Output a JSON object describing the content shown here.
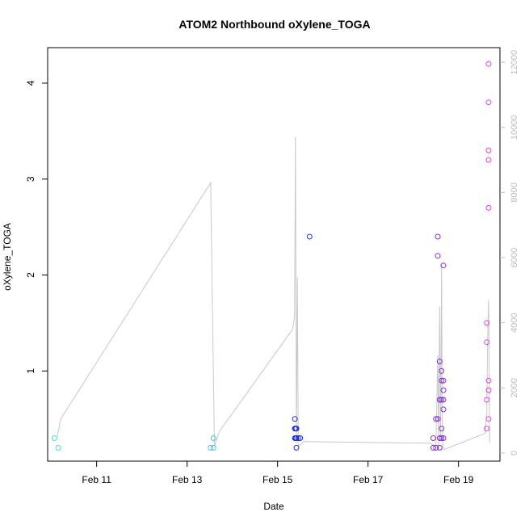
{
  "chart_data": {
    "type": "scatter",
    "title": "ATOM2 Northbound oXylene_TOGA",
    "xlabel": "Date",
    "ylabel": "oXylene_TOGA",
    "xlim": [
      "2017-02-09 22:00",
      "2017-02-19 22:00"
    ],
    "ylim": [
      0.06,
      4.37
    ],
    "x_ticks": [
      {
        "date": "2017-02-11",
        "label": "Feb 11"
      },
      {
        "date": "2017-02-13",
        "label": "Feb 13"
      },
      {
        "date": "2017-02-15",
        "label": "Feb 15"
      },
      {
        "date": "2017-02-17",
        "label": "Feb 17"
      },
      {
        "date": "2017-02-19",
        "label": "Feb 19"
      }
    ],
    "y_ticks": [
      1,
      2,
      3,
      4
    ],
    "secondary_axis": {
      "position": "right",
      "ylim": [
        -250,
        12450
      ],
      "ticks": [
        0,
        2000,
        4000,
        6000,
        8000,
        10000,
        12000
      ],
      "color": "#bdbdbd"
    },
    "series": [
      {
        "type": "points",
        "color_scale": "cyan-blue-magenta by time",
        "points": [
          {
            "x": "2017-02-10 01:36",
            "y": 0.3,
            "color": "#2ce8e8"
          },
          {
            "x": "2017-02-10 03:36",
            "y": 0.2,
            "color": "#2ce8e8"
          },
          {
            "x": "2017-02-13 12:30",
            "y": 0.2,
            "color": "#3cc8e8"
          },
          {
            "x": "2017-02-13 14:00",
            "y": 0.2,
            "color": "#3cc8e8"
          },
          {
            "x": "2017-02-13 14:00",
            "y": 0.3,
            "color": "#3cc8e8"
          },
          {
            "x": "2017-02-15 09:12",
            "y": 0.5,
            "color": "#1a2fe0"
          },
          {
            "x": "2017-02-15 09:12",
            "y": 0.4,
            "color": "#1a2fe0"
          },
          {
            "x": "2017-02-15 09:12",
            "y": 0.3,
            "color": "#1a2fe0"
          },
          {
            "x": "2017-02-15 09:36",
            "y": 0.4,
            "color": "#1a2fe0"
          },
          {
            "x": "2017-02-15 09:36",
            "y": 0.3,
            "color": "#1a2fe0"
          },
          {
            "x": "2017-02-15 10:00",
            "y": 0.4,
            "color": "#1a2fe0"
          },
          {
            "x": "2017-02-15 10:00",
            "y": 0.3,
            "color": "#1a2fe0"
          },
          {
            "x": "2017-02-15 10:00",
            "y": 0.2,
            "color": "#1a2fe0"
          },
          {
            "x": "2017-02-15 11:00",
            "y": 0.3,
            "color": "#1a2fe0"
          },
          {
            "x": "2017-02-15 12:00",
            "y": 0.3,
            "color": "#1a2fe0"
          },
          {
            "x": "2017-02-15 17:00",
            "y": 2.4,
            "color": "#1a3ae0"
          },
          {
            "x": "2017-02-18 10:36",
            "y": 0.3,
            "color": "#8a2be2"
          },
          {
            "x": "2017-02-18 10:36",
            "y": 0.2,
            "color": "#8a2be2"
          },
          {
            "x": "2017-02-18 12:00",
            "y": 0.5,
            "color": "#8a2be2"
          },
          {
            "x": "2017-02-18 12:00",
            "y": 0.2,
            "color": "#8a2be2"
          },
          {
            "x": "2017-02-18 13:00",
            "y": 2.4,
            "color": "#8a2be2"
          },
          {
            "x": "2017-02-18 13:00",
            "y": 2.2,
            "color": "#8a2be2"
          },
          {
            "x": "2017-02-18 13:00",
            "y": 0.5,
            "color": "#8a2be2"
          },
          {
            "x": "2017-02-18 14:00",
            "y": 1.1,
            "color": "#8a2be2"
          },
          {
            "x": "2017-02-18 14:00",
            "y": 0.7,
            "color": "#8a2be2"
          },
          {
            "x": "2017-02-18 14:00",
            "y": 0.3,
            "color": "#8a2be2"
          },
          {
            "x": "2017-02-18 14:00",
            "y": 0.2,
            "color": "#8a2be2"
          },
          {
            "x": "2017-02-18 15:00",
            "y": 1.0,
            "color": "#8a2be2"
          },
          {
            "x": "2017-02-18 15:00",
            "y": 0.9,
            "color": "#8a2be2"
          },
          {
            "x": "2017-02-18 15:00",
            "y": 0.7,
            "color": "#8a2be2"
          },
          {
            "x": "2017-02-18 15:00",
            "y": 0.4,
            "color": "#8a2be2"
          },
          {
            "x": "2017-02-18 15:00",
            "y": 0.3,
            "color": "#8a2be2"
          },
          {
            "x": "2017-02-18 16:00",
            "y": 2.1,
            "color": "#8a2be2"
          },
          {
            "x": "2017-02-18 16:00",
            "y": 0.9,
            "color": "#8a2be2"
          },
          {
            "x": "2017-02-18 16:00",
            "y": 0.8,
            "color": "#8a2be2"
          },
          {
            "x": "2017-02-18 16:00",
            "y": 0.7,
            "color": "#8a2be2"
          },
          {
            "x": "2017-02-18 16:00",
            "y": 0.6,
            "color": "#8a2be2"
          },
          {
            "x": "2017-02-18 16:00",
            "y": 0.3,
            "color": "#8a2be2"
          },
          {
            "x": "2017-02-19 15:00",
            "y": 1.5,
            "color": "#e83ce8"
          },
          {
            "x": "2017-02-19 15:00",
            "y": 1.3,
            "color": "#e83ce8"
          },
          {
            "x": "2017-02-19 15:00",
            "y": 0.7,
            "color": "#e83ce8"
          },
          {
            "x": "2017-02-19 15:00",
            "y": 0.4,
            "color": "#e83ce8"
          },
          {
            "x": "2017-02-19 16:00",
            "y": 4.2,
            "color": "#e83ce8"
          },
          {
            "x": "2017-02-19 16:00",
            "y": 3.8,
            "color": "#e83ce8"
          },
          {
            "x": "2017-02-19 16:00",
            "y": 3.3,
            "color": "#e83ce8"
          },
          {
            "x": "2017-02-19 16:00",
            "y": 3.2,
            "color": "#e83ce8"
          },
          {
            "x": "2017-02-19 16:00",
            "y": 2.7,
            "color": "#e83ce8"
          },
          {
            "x": "2017-02-19 16:00",
            "y": 0.9,
            "color": "#e83ce8"
          },
          {
            "x": "2017-02-19 16:00",
            "y": 0.8,
            "color": "#e83ce8"
          },
          {
            "x": "2017-02-19 16:00",
            "y": 0.5,
            "color": "#e83ce8"
          }
        ]
      },
      {
        "type": "line",
        "axis": "right",
        "color": "#c8c8c8",
        "points": [
          {
            "x": "2017-02-10 03:00",
            "y": 500
          },
          {
            "x": "2017-02-10 05:00",
            "y": 1050
          },
          {
            "x": "2017-02-13 12:30",
            "y": 8300
          },
          {
            "x": "2017-02-13 14:30",
            "y": 200
          },
          {
            "x": "2017-02-13 17:00",
            "y": 650
          },
          {
            "x": "2017-02-15 08:00",
            "y": 3800
          },
          {
            "x": "2017-02-15 09:00",
            "y": 4200
          },
          {
            "x": "2017-02-15 09:30",
            "y": 9700
          },
          {
            "x": "2017-02-15 10:00",
            "y": 300
          },
          {
            "x": "2017-02-15 10:30",
            "y": 5400
          },
          {
            "x": "2017-02-15 11:00",
            "y": 200
          },
          {
            "x": "2017-02-15 12:00",
            "y": 250
          },
          {
            "x": "2017-02-15 14:00",
            "y": 350
          },
          {
            "x": "2017-02-18 09:00",
            "y": 300
          },
          {
            "x": "2017-02-18 12:00",
            "y": 200
          },
          {
            "x": "2017-02-18 13:00",
            "y": 3000
          },
          {
            "x": "2017-02-18 13:30",
            "y": 200
          },
          {
            "x": "2017-02-18 14:00",
            "y": 4500
          },
          {
            "x": "2017-02-18 14:30",
            "y": 500
          },
          {
            "x": "2017-02-18 15:00",
            "y": 5800
          },
          {
            "x": "2017-02-18 15:30",
            "y": 300
          },
          {
            "x": "2017-02-18 16:00",
            "y": 100
          },
          {
            "x": "2017-02-19 14:00",
            "y": 600
          },
          {
            "x": "2017-02-19 15:00",
            "y": 1200
          },
          {
            "x": "2017-02-19 15:30",
            "y": 3600
          },
          {
            "x": "2017-02-19 16:00",
            "y": 4700
          },
          {
            "x": "2017-02-19 16:30",
            "y": 300
          }
        ]
      }
    ],
    "grid": false,
    "legend": "none"
  }
}
